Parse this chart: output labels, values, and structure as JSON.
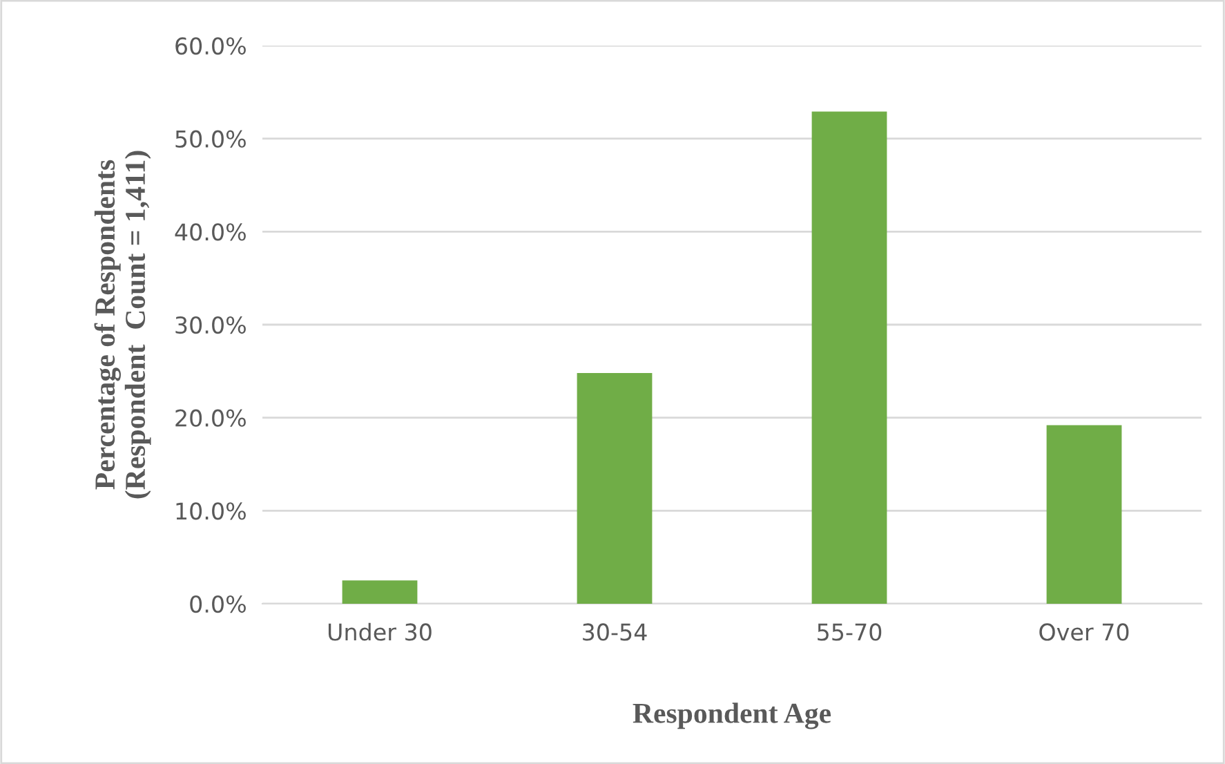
{
  "chart_data": {
    "type": "bar",
    "xlabel": "Respondent Age",
    "ylabel": "Percentage of Respondents\n(Respondent  Count = 1,411)",
    "categories": [
      "Under 30",
      "30-54",
      "55-70",
      "Over 70"
    ],
    "values": [
      2.5,
      24.8,
      52.9,
      19.2
    ],
    "color": "#70ad47",
    "ylim": [
      0,
      60
    ],
    "yticks": [
      {
        "value": 0,
        "label": "0.0%"
      },
      {
        "value": 10,
        "label": "10.0%"
      },
      {
        "value": 20,
        "label": "20.0%"
      },
      {
        "value": 30,
        "label": "30.0%"
      },
      {
        "value": 40,
        "label": "40.0%"
      },
      {
        "value": 50,
        "label": "50.0%"
      },
      {
        "value": 60,
        "label": "60.0%"
      }
    ],
    "grid": "y"
  }
}
